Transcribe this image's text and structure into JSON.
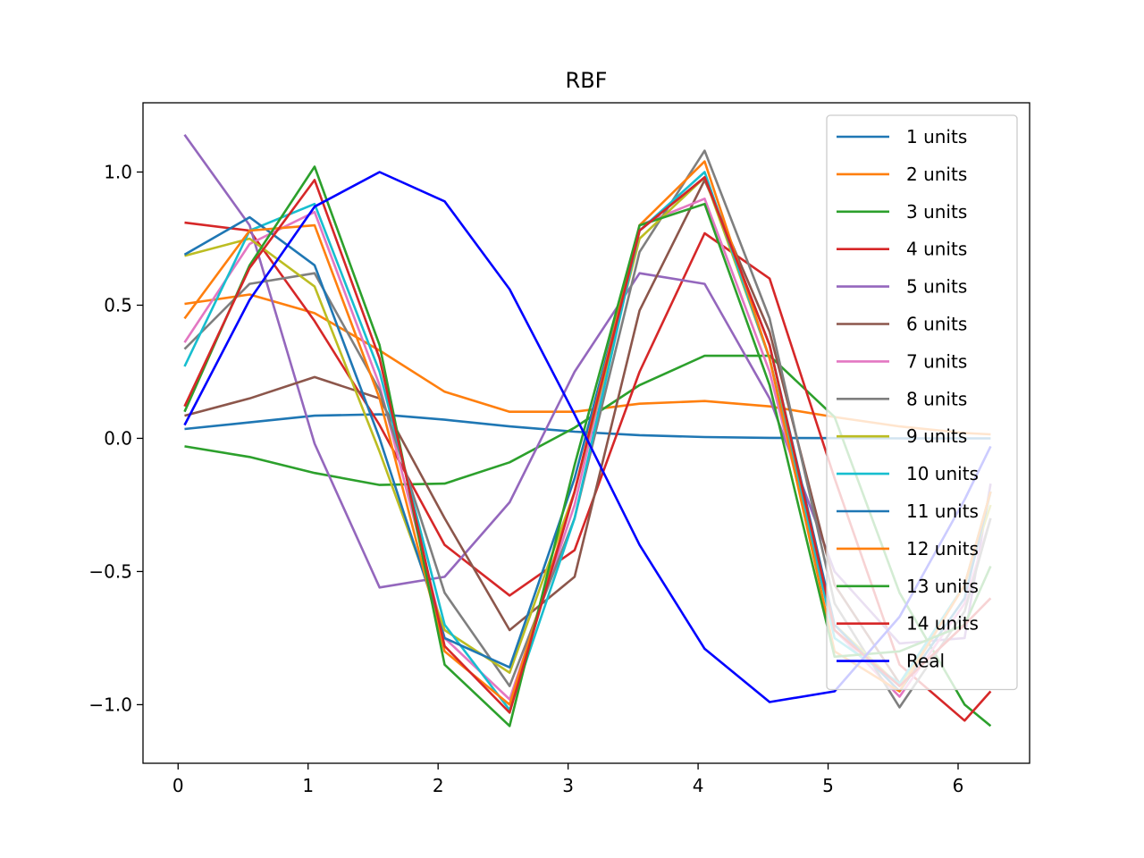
{
  "chart_data": {
    "type": "line",
    "title": "RBF",
    "xlabel": "",
    "ylabel": "",
    "xlim": [
      -0.27,
      6.55
    ],
    "ylim": [
      -1.22,
      1.26
    ],
    "xticks": [
      0,
      1,
      2,
      3,
      4,
      5,
      6
    ],
    "xtick_labels": [
      "0",
      "1",
      "2",
      "3",
      "4",
      "5",
      "6"
    ],
    "yticks": [
      -1.0,
      -0.5,
      0.0,
      0.5,
      1.0
    ],
    "ytick_labels": [
      "−1.0",
      "−0.5",
      "0.0",
      "0.5",
      "1.0"
    ],
    "grid": false,
    "legend_position": "top-right",
    "x": [
      0.05,
      0.55,
      1.05,
      1.55,
      2.05,
      2.55,
      3.05,
      3.55,
      4.05,
      4.55,
      5.05,
      5.55,
      6.05,
      6.25
    ],
    "series": [
      {
        "name": "1 units",
        "color": "#1f77b4",
        "values": [
          0.035,
          0.06,
          0.085,
          0.09,
          0.07,
          0.045,
          0.025,
          0.012,
          0.005,
          0.002,
          0.001,
          0.0,
          0.0,
          0.0
        ]
      },
      {
        "name": "2 units",
        "color": "#ff7f0e",
        "values": [
          0.505,
          0.54,
          0.47,
          0.33,
          0.175,
          0.1,
          0.1,
          0.13,
          0.14,
          0.12,
          0.08,
          0.045,
          0.02,
          0.015
        ]
      },
      {
        "name": "3 units",
        "color": "#2ca02c",
        "values": [
          -0.03,
          -0.07,
          -0.13,
          -0.175,
          -0.17,
          -0.09,
          0.04,
          0.2,
          0.31,
          0.31,
          0.08,
          -0.58,
          -1.0,
          -1.08
        ]
      },
      {
        "name": "4 units",
        "color": "#d62728",
        "values": [
          0.81,
          0.78,
          0.44,
          0.05,
          -0.4,
          -0.59,
          -0.42,
          0.25,
          0.77,
          0.6,
          -0.15,
          -0.85,
          -1.06,
          -0.95
        ]
      },
      {
        "name": "5 units",
        "color": "#9467bd",
        "values": [
          1.14,
          0.8,
          -0.02,
          -0.56,
          -0.52,
          -0.24,
          0.25,
          0.62,
          0.58,
          0.15,
          -0.5,
          -0.77,
          -0.75,
          -0.17
        ]
      },
      {
        "name": "6 units",
        "color": "#8c564b",
        "values": [
          0.085,
          0.15,
          0.23,
          0.15,
          -0.3,
          -0.72,
          -0.52,
          0.48,
          0.97,
          0.4,
          -0.55,
          -0.92,
          -0.55,
          -0.2
        ]
      },
      {
        "name": "7 units",
        "color": "#e377c2",
        "values": [
          0.36,
          0.73,
          0.85,
          0.2,
          -0.75,
          -0.98,
          -0.25,
          0.8,
          0.9,
          0.25,
          -0.72,
          -0.97,
          -0.62,
          -0.3
        ]
      },
      {
        "name": "8 units",
        "color": "#7f7f7f",
        "values": [
          0.335,
          0.58,
          0.62,
          0.18,
          -0.58,
          -0.93,
          -0.3,
          0.7,
          1.08,
          0.45,
          -0.62,
          -1.01,
          -0.65,
          -0.3
        ]
      },
      {
        "name": "9 units",
        "color": "#bcbd22",
        "values": [
          0.685,
          0.75,
          0.57,
          -0.05,
          -0.72,
          -0.88,
          -0.2,
          0.75,
          0.98,
          0.3,
          -0.7,
          -0.93,
          -0.55,
          -0.25
        ]
      },
      {
        "name": "10 units",
        "color": "#17becf",
        "values": [
          0.27,
          0.78,
          0.88,
          0.25,
          -0.7,
          -1.02,
          -0.3,
          0.78,
          1.0,
          0.3,
          -0.75,
          -0.92,
          -0.55,
          -0.2
        ]
      },
      {
        "name": "11 units",
        "color": "#1f77b4",
        "values": [
          0.69,
          0.83,
          0.65,
          0.0,
          -0.75,
          -0.86,
          -0.15,
          0.78,
          0.98,
          0.35,
          -0.7,
          -0.95,
          -0.6,
          -0.2
        ]
      },
      {
        "name": "12 units",
        "color": "#ff7f0e",
        "values": [
          0.45,
          0.78,
          0.8,
          0.15,
          -0.8,
          -1.0,
          -0.2,
          0.8,
          1.04,
          0.3,
          -0.8,
          -0.95,
          -0.55,
          -0.2
        ]
      },
      {
        "name": "13 units",
        "color": "#2ca02c",
        "values": [
          0.1,
          0.65,
          1.02,
          0.35,
          -0.85,
          -1.08,
          -0.1,
          0.8,
          0.88,
          0.2,
          -0.82,
          -0.8,
          -0.7,
          -0.48
        ]
      },
      {
        "name": "14 units",
        "color": "#d62728",
        "values": [
          0.12,
          0.64,
          0.97,
          0.3,
          -0.78,
          -1.03,
          -0.2,
          0.78,
          0.98,
          0.35,
          -0.72,
          -0.93,
          -0.7,
          -0.6
        ]
      },
      {
        "name": "Real",
        "color": "#0000ff",
        "values": [
          0.05,
          0.52,
          0.87,
          1.0,
          0.89,
          0.56,
          0.09,
          -0.4,
          -0.79,
          -0.99,
          -0.95,
          -0.67,
          -0.23,
          -0.03
        ]
      }
    ]
  }
}
